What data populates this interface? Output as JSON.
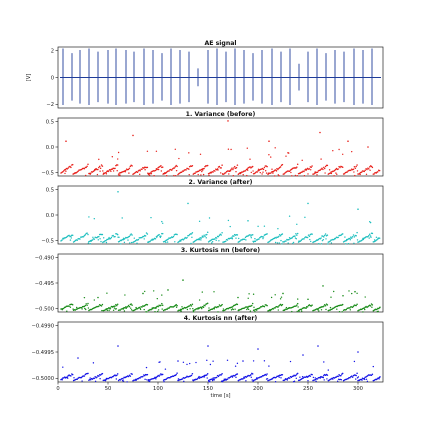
{
  "chart_data": [
    {
      "type": "line",
      "title": "AE signal",
      "ylabel": "[V]",
      "ylim": [
        -2,
        2
      ],
      "yticks": [
        "2",
        "0",
        "−2"
      ],
      "color": "#1f3c99",
      "x": [
        5,
        14,
        22,
        31,
        40,
        50,
        58,
        68,
        76,
        86,
        95,
        104,
        113,
        122,
        131,
        140,
        150,
        159,
        168,
        177,
        186,
        195,
        204,
        214,
        223,
        232,
        241,
        250,
        259,
        268,
        277,
        286,
        296,
        305,
        314
      ],
      "burst_amplitude": [
        1.9,
        1.6,
        1.8,
        1.9,
        1.7,
        1.8,
        1.9,
        1.8,
        1.7,
        1.9,
        1.8,
        1.6,
        1.9,
        1.8,
        1.7,
        0.6,
        1.8,
        1.9,
        1.7,
        1.9,
        1.8,
        1.6,
        1.8,
        1.9,
        1.7,
        1.9,
        0.9,
        1.7,
        1.9,
        1.6,
        1.8,
        1.7,
        1.9,
        1.8,
        1.9
      ]
    },
    {
      "type": "scatter",
      "title": "1. Variance (before)",
      "ylim": [
        -0.5,
        0.5
      ],
      "yticks": [
        "0.5",
        "0.0",
        "−0.5"
      ],
      "color": "#e8221c",
      "band": [
        -0.5,
        -0.3
      ],
      "outliers": [
        [
          8,
          0.1
        ],
        [
          75,
          0.2
        ],
        [
          170,
          0.45
        ],
        [
          211,
          0.1
        ],
        [
          230,
          -0.1
        ],
        [
          262,
          0.25
        ],
        [
          290,
          0.1
        ],
        [
          310,
          0.0
        ]
      ]
    },
    {
      "type": "scatter",
      "title": "2. Variance (after)",
      "ylim": [
        -0.5,
        0.5
      ],
      "yticks": [
        "0.5",
        "0.0",
        "−0.5"
      ],
      "color": "#1fbfbf",
      "band": [
        -0.5,
        -0.3
      ],
      "outliers": [
        [
          60,
          0.4
        ],
        [
          130,
          0.2
        ],
        [
          190,
          -0.1
        ],
        [
          250,
          0.2
        ],
        [
          300,
          0.1
        ]
      ]
    },
    {
      "type": "scatter",
      "title": "3. Kurtosis nn (before)",
      "ylim": [
        -0.5,
        -0.49
      ],
      "yticks": [
        "−0.490",
        "−0.495",
        "−0.500"
      ],
      "color": "#1a8c1a",
      "band": [
        -0.5,
        -0.4985
      ],
      "outliers": [
        [
          40,
          -0.4975
        ],
        [
          85,
          -0.4968
        ],
        [
          110,
          -0.4962
        ],
        [
          125,
          -0.4945
        ],
        [
          180,
          -0.4975
        ],
        [
          225,
          -0.4968
        ],
        [
          250,
          -0.4978
        ],
        [
          265,
          -0.4955
        ],
        [
          285,
          -0.4972
        ],
        [
          297,
          -0.4965
        ]
      ]
    },
    {
      "type": "scatter",
      "title": "4. Kurtosis nn (after)",
      "ylim": [
        -0.5,
        -0.499
      ],
      "yticks": [
        "−0.4990",
        "−0.4995",
        "−0.5000"
      ],
      "color": "#1414e6",
      "band": [
        -0.5,
        -0.49985
      ],
      "outliers": [
        [
          20,
          -0.4996
        ],
        [
          60,
          -0.4994
        ],
        [
          120,
          -0.49965
        ],
        [
          150,
          -0.4994
        ],
        [
          185,
          -0.49965
        ],
        [
          200,
          -0.49945
        ],
        [
          245,
          -0.49955
        ],
        [
          260,
          -0.4994
        ],
        [
          300,
          -0.4995
        ]
      ]
    }
  ],
  "xaxis": {
    "label": "time [s]",
    "xlim": [
      0,
      325
    ],
    "ticks": [
      0,
      50,
      100,
      150,
      200,
      250,
      300
    ]
  }
}
